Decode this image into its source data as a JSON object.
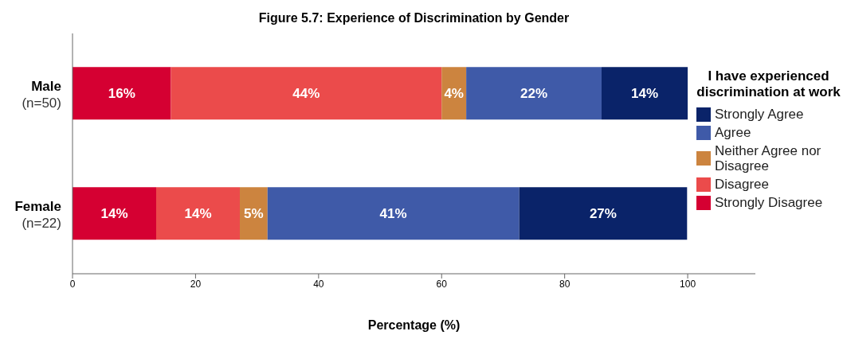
{
  "chart_data": {
    "type": "bar",
    "orientation": "horizontal",
    "stacked": true,
    "title": "Figure 5.7: Experience of Discrimination by Gender",
    "xlabel": "Percentage (%)",
    "legend_title": "I have experienced discrimination at work",
    "legend": "right",
    "categories": [
      "Male\n(n=50)",
      "Female\n(n=22)"
    ],
    "series": [
      {
        "name": "Strongly Disagree",
        "color": "#d50032",
        "values": [
          16,
          13.6
        ],
        "value_labels": [
          "16%",
          "14%"
        ]
      },
      {
        "name": "Disagree",
        "color": "#eb4b4b",
        "values": [
          44,
          13.6
        ],
        "value_labels": [
          "44%",
          "14%"
        ]
      },
      {
        "name": "Neither Agree nor Disagree",
        "color": "#cc843f",
        "values": [
          4,
          4.5
        ],
        "value_labels": [
          "4%",
          "5%"
        ]
      },
      {
        "name": "Agree",
        "color": "#3f5aa8",
        "values": [
          22,
          40.9
        ],
        "value_labels": [
          "22%",
          "41%"
        ]
      },
      {
        "name": "Strongly Agree",
        "color": "#0a2369",
        "values": [
          14,
          27.3
        ],
        "value_labels": [
          "14%",
          "27%"
        ]
      }
    ],
    "xlim": [
      0,
      111
    ],
    "xticks": [
      0,
      20,
      40,
      60,
      80,
      100
    ],
    "grid": false
  }
}
